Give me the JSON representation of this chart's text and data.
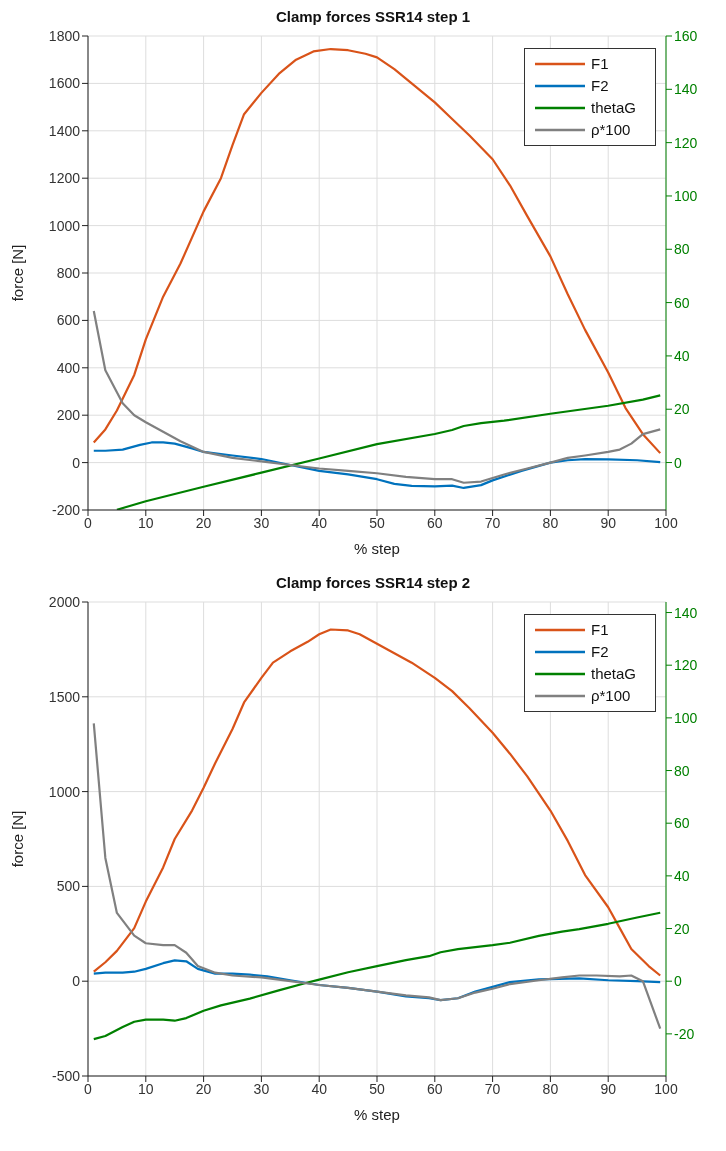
{
  "chart_data": [
    {
      "type": "line",
      "title": "Clamp forces SSR14 step 1",
      "xlabel": "% step",
      "ylabel": "force [N]",
      "xlim": [
        0,
        100
      ],
      "xticks": [
        0,
        10,
        20,
        30,
        40,
        50,
        60,
        70,
        80,
        90,
        100
      ],
      "ylim": [
        -200,
        1800
      ],
      "yticks": [
        -200,
        0,
        200,
        400,
        600,
        800,
        1000,
        1200,
        1400,
        1600,
        1800
      ],
      "y2lim": [
        -17.8,
        160
      ],
      "y2ticks": [
        0,
        20,
        40,
        60,
        80,
        100,
        120,
        140,
        160
      ],
      "grid": true,
      "legend": "top right",
      "marker": "none",
      "line_style": "solid",
      "series": [
        {
          "name": "F1",
          "color": "#d95319",
          "x": [
            1,
            3,
            5,
            8,
            10,
            13,
            16,
            20,
            23,
            25,
            27,
            30,
            33,
            36,
            39,
            42,
            45,
            48,
            50,
            53,
            56,
            60,
            63,
            66,
            70,
            73,
            76,
            80,
            83,
            86,
            90,
            93,
            96,
            99
          ],
          "values": [
            85,
            140,
            220,
            370,
            520,
            700,
            840,
            1060,
            1200,
            1340,
            1470,
            1560,
            1640,
            1700,
            1735,
            1745,
            1740,
            1725,
            1710,
            1660,
            1600,
            1520,
            1450,
            1380,
            1280,
            1170,
            1040,
            870,
            710,
            560,
            380,
            230,
            120,
            40
          ]
        },
        {
          "name": "F2",
          "color": "#0072bd",
          "x": [
            1,
            3,
            6,
            9,
            11,
            13,
            15,
            18,
            20,
            25,
            30,
            35,
            40,
            45,
            50,
            53,
            56,
            60,
            63,
            65,
            68,
            70,
            75,
            80,
            83,
            86,
            90,
            95,
            99
          ],
          "values": [
            50,
            50,
            55,
            75,
            85,
            85,
            80,
            60,
            45,
            30,
            15,
            -10,
            -35,
            -50,
            -70,
            -90,
            -98,
            -100,
            -97,
            -107,
            -95,
            -75,
            -35,
            0,
            10,
            15,
            14,
            10,
            2
          ]
        },
        {
          "name": "thetaG",
          "color": "#008000",
          "axis": "y2",
          "x": [
            5,
            10,
            20,
            30,
            40,
            50,
            60,
            63,
            65,
            68,
            72,
            80,
            90,
            96,
            99
          ],
          "values": [
            -17.7,
            -14.5,
            -9.1,
            -3.8,
            1.5,
            6.9,
            10.7,
            12.2,
            13.7,
            14.8,
            15.7,
            18.3,
            21.3,
            23.6,
            25.2
          ]
        },
        {
          "name": "ρ*100",
          "color": "#808080",
          "x": [
            1,
            3,
            6,
            8,
            10,
            13,
            16,
            20,
            25,
            30,
            35,
            40,
            45,
            50,
            55,
            60,
            63,
            65,
            68,
            72,
            76,
            80,
            83,
            86,
            90,
            92,
            94,
            96,
            99
          ],
          "values": [
            640,
            390,
            250,
            200,
            170,
            130,
            90,
            45,
            20,
            5,
            -10,
            -25,
            -35,
            -45,
            -60,
            -70,
            -70,
            -85,
            -80,
            -50,
            -25,
            0,
            20,
            30,
            45,
            55,
            80,
            120,
            140
          ]
        }
      ]
    },
    {
      "type": "line",
      "title": "Clamp forces SSR14 step 2",
      "xlabel": "% step",
      "ylabel": "force [N]",
      "xlim": [
        0,
        100
      ],
      "xticks": [
        0,
        10,
        20,
        30,
        40,
        50,
        60,
        70,
        80,
        90,
        100
      ],
      "ylim": [
        -500,
        2000
      ],
      "yticks": [
        -500,
        0,
        500,
        1000,
        1500,
        2000
      ],
      "y2lim": [
        -36,
        144
      ],
      "y2ticks": [
        -20,
        0,
        20,
        40,
        60,
        80,
        100,
        120,
        140
      ],
      "grid": true,
      "legend": "top right",
      "marker": "none",
      "line_style": "solid",
      "series": [
        {
          "name": "F1",
          "color": "#d95319",
          "x": [
            1,
            3,
            5,
            8,
            10,
            13,
            15,
            18,
            20,
            22,
            25,
            27,
            30,
            32,
            35,
            38,
            40,
            42,
            45,
            47,
            50,
            53,
            56,
            60,
            63,
            66,
            70,
            73,
            76,
            80,
            83,
            86,
            90,
            92,
            94,
            97,
            99
          ],
          "values": [
            50,
            100,
            160,
            280,
            420,
            600,
            750,
            900,
            1020,
            1150,
            1330,
            1470,
            1600,
            1680,
            1740,
            1790,
            1830,
            1855,
            1850,
            1830,
            1780,
            1730,
            1680,
            1600,
            1530,
            1440,
            1310,
            1200,
            1080,
            900,
            740,
            560,
            390,
            280,
            170,
            80,
            30
          ]
        },
        {
          "name": "F2",
          "color": "#0072bd",
          "x": [
            1,
            3,
            6,
            8,
            10,
            13,
            15,
            17,
            19,
            22,
            25,
            28,
            31,
            35,
            40,
            45,
            50,
            55,
            59,
            61,
            64,
            67,
            70,
            73,
            78,
            85,
            90,
            95,
            99
          ],
          "values": [
            40,
            45,
            45,
            50,
            65,
            95,
            110,
            105,
            65,
            40,
            40,
            35,
            25,
            5,
            -20,
            -35,
            -55,
            -80,
            -90,
            -100,
            -90,
            -55,
            -30,
            -5,
            10,
            15,
            5,
            0,
            -5
          ]
        },
        {
          "name": "thetaG",
          "color": "#008000",
          "axis": "y2",
          "x": [
            1,
            3,
            6,
            8,
            10,
            13,
            15,
            17,
            20,
            23,
            28,
            33,
            38,
            40,
            45,
            50,
            55,
            59,
            61,
            64,
            70,
            73,
            78,
            82,
            85,
            90,
            95,
            99
          ],
          "values": [
            -22,
            -20.8,
            -17.4,
            -15.4,
            -14.6,
            -14.6,
            -15,
            -14,
            -11.2,
            -9.2,
            -6.6,
            -3.5,
            -0.5,
            0.6,
            3.4,
            5.7,
            8,
            9.5,
            11,
            12.2,
            13.7,
            14.6,
            17.2,
            18.8,
            19.8,
            21.8,
            24.2,
            26
          ]
        },
        {
          "name": "ρ*100",
          "color": "#808080",
          "x": [
            1,
            3,
            5,
            8,
            10,
            13,
            15,
            17,
            19,
            22,
            25,
            30,
            35,
            40,
            45,
            50,
            55,
            59,
            61,
            64,
            67,
            70,
            73,
            78,
            82,
            85,
            88,
            92,
            94,
            96,
            99
          ],
          "values": [
            1360,
            650,
            360,
            240,
            200,
            190,
            190,
            150,
            80,
            45,
            30,
            20,
            0,
            -20,
            -35,
            -55,
            -75,
            -85,
            -100,
            -90,
            -60,
            -40,
            -15,
            5,
            20,
            30,
            30,
            25,
            30,
            0,
            -250
          ]
        }
      ]
    }
  ]
}
